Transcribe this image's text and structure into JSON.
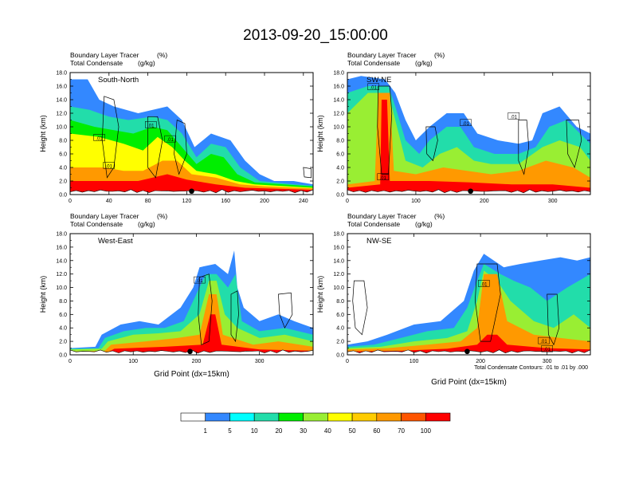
{
  "title": "2013-09-20_15:00:00",
  "panel_header": {
    "line1_name": "Boundary Layer Tracer",
    "line1_unit": "(%)",
    "line2_name": "Total Condensate",
    "line2_unit": "(g/kg)"
  },
  "ylabel": "Height (km)",
  "xlabel": "Grid Point (dx=15km)",
  "contour_note": "Total Condensate Contours: .01 to .01 by .000",
  "contour_label": ".01",
  "colorbar": {
    "colors": [
      "#ffffff",
      "#3388ff",
      "#00ffff",
      "#22ddaa",
      "#00ee00",
      "#99ee33",
      "#ffff00",
      "#ffcc00",
      "#ff9900",
      "#ff5500",
      "#ff0000"
    ],
    "labels": [
      "1",
      "5",
      "10",
      "20",
      "30",
      "40",
      "50",
      "60",
      "70",
      "100"
    ]
  },
  "chart_data": [
    {
      "type": "heatmap",
      "panel_label": "South-North",
      "xlim": [
        0,
        250
      ],
      "ylim": [
        0,
        18
      ],
      "xticks": [
        "0",
        "40",
        "80",
        "120",
        "160",
        "200",
        "240"
      ],
      "yticks": [
        "0.0",
        "2.0",
        "4.0",
        "6.0",
        "8.0",
        "10.0",
        "12.0",
        "14.0",
        "16.0",
        "18.0"
      ],
      "marker_x": 125
    },
    {
      "type": "heatmap",
      "panel_label": "SW-NE",
      "xlim": [
        0,
        355
      ],
      "ylim": [
        0,
        18
      ],
      "xticks": [
        "0",
        "100",
        "200",
        "300"
      ],
      "yticks": [
        "0.0",
        "2.0",
        "4.0",
        "6.0",
        "8.0",
        "10.0",
        "12.0",
        "14.0",
        "16.0",
        "18.0"
      ],
      "marker_x": 180
    },
    {
      "type": "heatmap",
      "panel_label": "West-East",
      "xlim": [
        0,
        385
      ],
      "ylim": [
        0,
        18
      ],
      "xticks": [
        "0",
        "100",
        "200",
        "300"
      ],
      "yticks": [
        "0.0",
        "2.0",
        "4.0",
        "6.0",
        "8.0",
        "10.0",
        "12.0",
        "14.0",
        "16.0",
        "18.0"
      ],
      "marker_x": 190
    },
    {
      "type": "heatmap",
      "panel_label": "NW-SE",
      "xlim": [
        0,
        365
      ],
      "ylim": [
        0,
        18
      ],
      "xticks": [
        "0",
        "100",
        "200",
        "300"
      ],
      "yticks": [
        "0.0",
        "2.0",
        "4.0",
        "6.0",
        "8.0",
        "10.0",
        "12.0",
        "14.0",
        "16.0",
        "18.0"
      ],
      "marker_x": 180
    }
  ]
}
